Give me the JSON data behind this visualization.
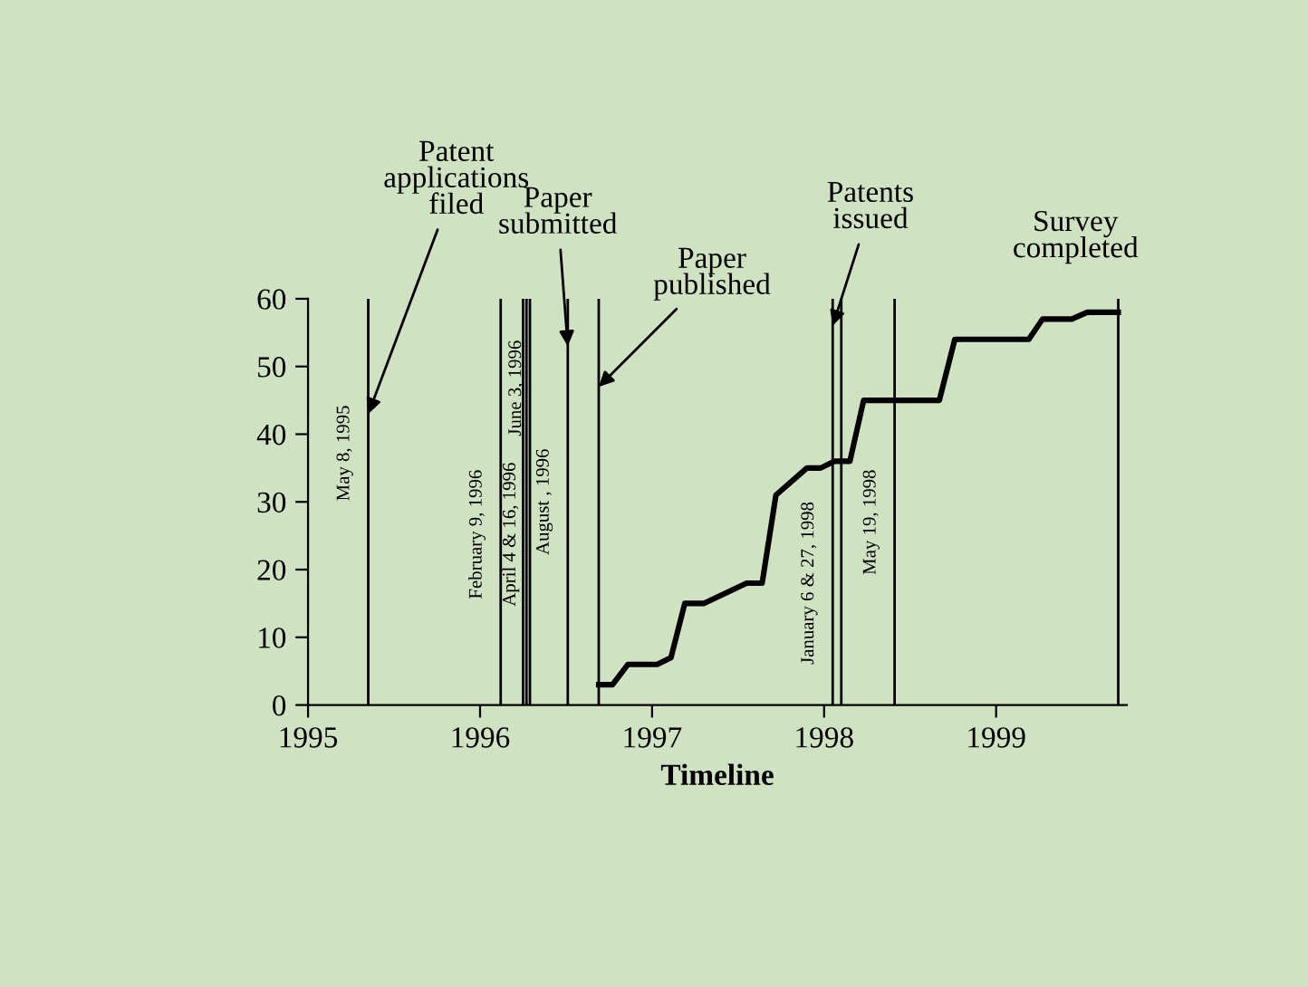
{
  "chart_data": {
    "type": "line",
    "xlabel": "Timeline",
    "x": [
      1996.69,
      1996.77,
      1996.86,
      1997.03,
      1997.11,
      1997.19,
      1997.3,
      1997.55,
      1997.64,
      1997.72,
      1997.9,
      1997.98,
      1998.06,
      1998.15,
      1998.23,
      1998.67,
      1998.76,
      1999.19,
      1999.27,
      1999.44,
      1999.53,
      1999.71
    ],
    "series": [
      {
        "color": "#000000",
        "values": [
          3,
          3,
          6,
          6,
          7,
          15,
          15,
          18,
          18,
          31,
          35,
          35,
          36,
          36,
          45,
          45,
          54,
          54,
          57,
          57,
          58,
          58
        ]
      }
    ],
    "xlim": [
      1995,
      1999.76
    ],
    "xticks": [
      1995,
      1996,
      1997,
      1998,
      1999
    ],
    "ylim": [
      0,
      60
    ],
    "yticks": [
      0,
      10,
      20,
      30,
      40,
      50,
      60
    ],
    "grid": false,
    "legend": false,
    "marker": "none",
    "line_style": "solid",
    "ref_lines": [
      {
        "axis": "x",
        "value": 1995.35,
        "label": "May 8, 1995"
      },
      {
        "axis": "x",
        "value": 1996.12,
        "label": "February 9, 1996"
      },
      {
        "axis": "x",
        "value": 1996.25,
        "label": "April 4 & 16, 1996"
      },
      {
        "axis": "x",
        "value": 1996.27,
        "label": null
      },
      {
        "axis": "x",
        "value": 1996.29,
        "label": "June 3, 1996"
      },
      {
        "axis": "x",
        "value": 1996.51,
        "label": "August , 1996"
      },
      {
        "axis": "x",
        "value": 1996.69,
        "label": null
      },
      {
        "axis": "x",
        "value": 1998.05,
        "label": "January 6 & 27, 1998"
      },
      {
        "axis": "x",
        "value": 1998.1,
        "label": null
      },
      {
        "axis": "x",
        "value": 1998.41,
        "label": "May 19, 1998"
      },
      {
        "axis": "x",
        "value": 1999.71,
        "label": null
      }
    ],
    "annotations": [
      {
        "text": "Patent\napplications\nfiled",
        "x": 1995.35,
        "y": 43
      },
      {
        "text": "Paper\nsubmitted",
        "x": 1996.51,
        "y": 53
      },
      {
        "text": "Paper\npublished",
        "x": 1996.69,
        "y": 47
      },
      {
        "text": "Patents\nissued",
        "x": 1998.05,
        "y": 56
      },
      {
        "text": "Survey\ncompleted",
        "x": 1999.71,
        "y": 58
      }
    ]
  }
}
